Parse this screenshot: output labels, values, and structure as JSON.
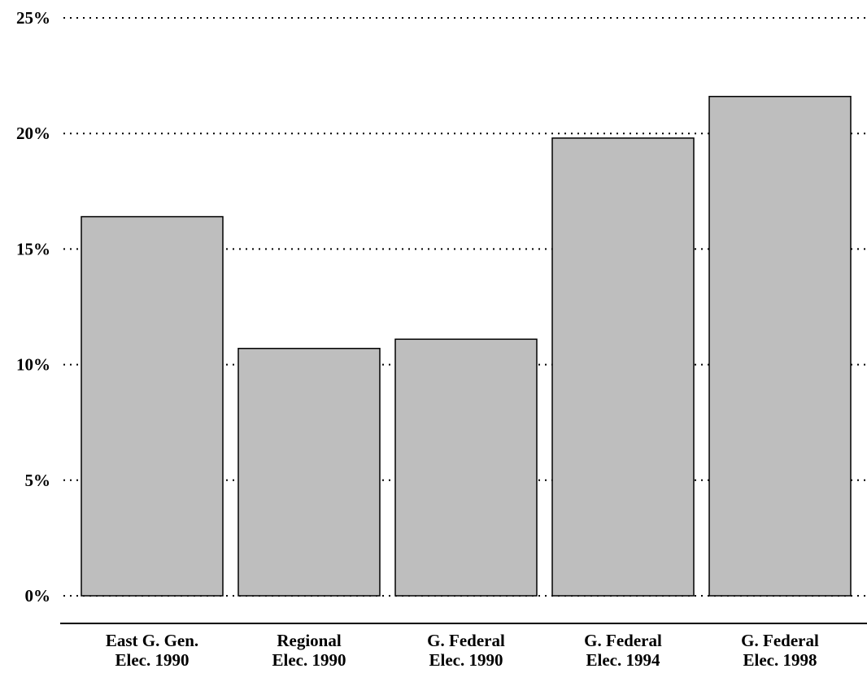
{
  "chart_data": {
    "type": "bar",
    "categories": [
      [
        "East G. Gen.",
        "Elec. 1990"
      ],
      [
        "Regional",
        "Elec. 1990"
      ],
      [
        "G. Federal",
        "Elec. 1990"
      ],
      [
        "G. Federal",
        "Elec. 1994"
      ],
      [
        "G. Federal",
        "Elec. 1998"
      ]
    ],
    "values": [
      16.4,
      10.7,
      11.1,
      19.8,
      21.6
    ],
    "yticks": [
      0,
      5,
      10,
      15,
      20,
      25
    ],
    "ytick_labels": [
      "0%",
      "5%",
      "10%",
      "15%",
      "20%",
      "25%"
    ],
    "ylim": [
      0,
      25
    ],
    "grid": true,
    "bar_color": "#bebebe",
    "title": "",
    "xlabel": "",
    "ylabel": ""
  }
}
